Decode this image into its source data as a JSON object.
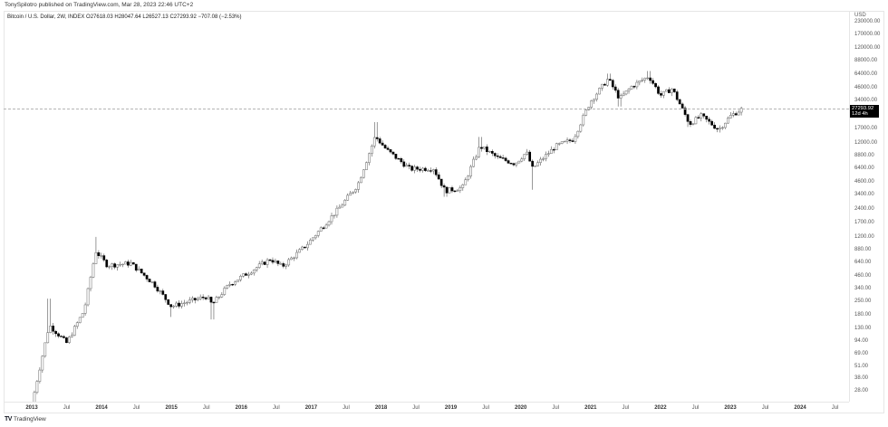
{
  "header": {
    "publisher": "TonySpilotro published on TradingView.com, Mar 28, 2023 22:46 UTC+2",
    "legend": "Bitcoin / U.S. Dollar, 2W, INDEX  O27618.03  H28047.64  L26527.13  C27293.92  −707.08 (−2.53%)"
  },
  "price_axis": {
    "currency": "USD",
    "labels": [
      "230000.00",
      "170000.00",
      "120000.00",
      "88000.00",
      "64000.00",
      "46000.00",
      "34000.00",
      "17000.00",
      "12000.00",
      "8800.00",
      "6400.00",
      "4600.00",
      "3400.00",
      "2400.00",
      "1700.00",
      "1200.00",
      "880.00",
      "640.00",
      "460.00",
      "340.00",
      "250.00",
      "180.00",
      "130.00",
      "94.00",
      "69.00",
      "51.00",
      "38.00",
      "28.00"
    ]
  },
  "current_price": {
    "value": "27293.92",
    "countdown": "12d 4h"
  },
  "time_axis": {
    "labels": [
      "2013",
      "Jul",
      "2014",
      "Jul",
      "2015",
      "Jul",
      "2016",
      "Jul",
      "2017",
      "Jul",
      "2018",
      "Jul",
      "2019",
      "Jul",
      "2020",
      "Jul",
      "2021",
      "Jul",
      "2022",
      "Jul",
      "2023",
      "Jul",
      "2024",
      "Jul"
    ]
  },
  "footer": {
    "logo_mark": "TV",
    "brand": "TradingView"
  },
  "colors": {
    "up_body": "#ffffff",
    "down_body": "#000000",
    "wick": "#000000",
    "price_tag_bg": "#000000",
    "grid_border": "#e6e6e6"
  },
  "chart_data": {
    "type": "candlestick",
    "title": "Bitcoin / U.S. Dollar, 2W, INDEX",
    "symbol": "BTCUSD",
    "interval": "2W",
    "scale": "log",
    "ohlc_last": {
      "open": 27618.03,
      "high": 28047.64,
      "low": 26527.13,
      "close": 27293.92,
      "change": -707.08,
      "change_pct": -2.53
    },
    "ylim": [
      25,
      250000
    ],
    "xlabel": "",
    "ylabel": "USD",
    "y_ticks": [
      230000,
      170000,
      120000,
      88000,
      64000,
      46000,
      34000,
      17000,
      12000,
      8800,
      6400,
      4600,
      3400,
      2400,
      1700,
      1200,
      880,
      640,
      460,
      340,
      250,
      180,
      130,
      94,
      69,
      51,
      38,
      28
    ],
    "x_ticks": [
      "2013",
      "Jul",
      "2014",
      "Jul",
      "2015",
      "Jul",
      "2016",
      "Jul",
      "2017",
      "Jul",
      "2018",
      "Jul",
      "2019",
      "Jul",
      "2020",
      "Jul",
      "2021",
      "Jul",
      "2022",
      "Jul",
      "2023",
      "Jul",
      "2024",
      "Jul"
    ],
    "approx_path": [
      {
        "date": "2013-01",
        "close": 20
      },
      {
        "date": "2013-04",
        "close": 140,
        "high": 266
      },
      {
        "date": "2013-07",
        "close": 90
      },
      {
        "date": "2013-10",
        "close": 200
      },
      {
        "date": "2013-12",
        "close": 850,
        "high": 1200
      },
      {
        "date": "2014-02",
        "close": 600
      },
      {
        "date": "2014-06",
        "close": 630
      },
      {
        "date": "2014-10",
        "close": 380
      },
      {
        "date": "2015-01",
        "close": 220,
        "low": 170
      },
      {
        "date": "2015-07",
        "close": 280
      },
      {
        "date": "2015-08",
        "close": 230,
        "low": 160
      },
      {
        "date": "2015-11",
        "close": 380
      },
      {
        "date": "2016-06",
        "close": 700
      },
      {
        "date": "2016-08",
        "close": 580
      },
      {
        "date": "2016-12",
        "close": 960
      },
      {
        "date": "2017-06",
        "close": 2500
      },
      {
        "date": "2017-09",
        "close": 4300
      },
      {
        "date": "2017-12",
        "close": 14000,
        "high": 19800
      },
      {
        "date": "2018-02",
        "close": 10000
      },
      {
        "date": "2018-06",
        "close": 6300
      },
      {
        "date": "2018-10",
        "close": 6400
      },
      {
        "date": "2018-12",
        "close": 3700,
        "low": 3200
      },
      {
        "date": "2019-03",
        "close": 4000
      },
      {
        "date": "2019-06",
        "close": 11000,
        "high": 13800
      },
      {
        "date": "2019-09",
        "close": 8300
      },
      {
        "date": "2019-12",
        "close": 7200
      },
      {
        "date": "2020-02",
        "close": 9500
      },
      {
        "date": "2020-03",
        "close": 6400,
        "low": 3800
      },
      {
        "date": "2020-07",
        "close": 11000
      },
      {
        "date": "2020-10",
        "close": 13000
      },
      {
        "date": "2021-01",
        "close": 33000
      },
      {
        "date": "2021-04",
        "close": 57000,
        "high": 64800
      },
      {
        "date": "2021-06",
        "close": 35000,
        "low": 29000
      },
      {
        "date": "2021-08",
        "close": 47000
      },
      {
        "date": "2021-11",
        "close": 61000,
        "high": 69000
      },
      {
        "date": "2022-01",
        "close": 38000
      },
      {
        "date": "2022-03",
        "close": 45000
      },
      {
        "date": "2022-06",
        "close": 19000,
        "low": 17600
      },
      {
        "date": "2022-08",
        "close": 23000
      },
      {
        "date": "2022-11",
        "close": 16500,
        "low": 15500
      },
      {
        "date": "2023-01",
        "close": 23000
      },
      {
        "date": "2023-03",
        "close": 27293.92,
        "high": 28047.64
      }
    ],
    "current_price_line": 27293.92
  }
}
